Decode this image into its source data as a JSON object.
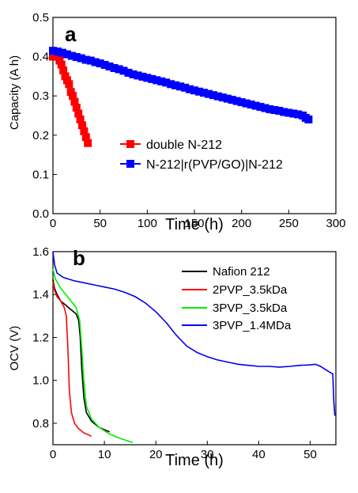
{
  "chart_data": [
    {
      "type": "scatter",
      "panel_label": "a",
      "xlabel": "Time (h)",
      "ylabel": "Capacity (A h)",
      "xlim": [
        0,
        300
      ],
      "ylim": [
        0.0,
        0.5
      ],
      "xticks": [
        "0",
        "50",
        "100",
        "150",
        "200",
        "250",
        "300"
      ],
      "yticks": [
        "0.0",
        "0.1",
        "0.2",
        "0.3",
        "0.4",
        "0.5"
      ],
      "legend_position": "center-right",
      "grid": false,
      "series": [
        {
          "name": "double N-212",
          "color": "#ff0000",
          "marker": "square",
          "x": [
            0,
            3,
            5,
            7,
            9,
            11,
            13,
            15,
            17,
            19,
            21,
            23,
            25,
            27,
            29,
            31,
            33,
            35,
            37
          ],
          "y": [
            0.4,
            0.405,
            0.4,
            0.39,
            0.38,
            0.365,
            0.35,
            0.34,
            0.33,
            0.31,
            0.3,
            0.285,
            0.27,
            0.255,
            0.24,
            0.225,
            0.21,
            0.195,
            0.18
          ]
        },
        {
          "name": "N-212|r(PVP/GO)|N-212",
          "color": "#0000ff",
          "marker": "square",
          "x": [
            0,
            5,
            10,
            15,
            20,
            25,
            30,
            35,
            40,
            45,
            50,
            55,
            60,
            65,
            70,
            75,
            80,
            85,
            90,
            95,
            100,
            105,
            110,
            115,
            120,
            125,
            130,
            135,
            140,
            145,
            150,
            155,
            160,
            165,
            170,
            175,
            180,
            185,
            190,
            195,
            200,
            205,
            210,
            215,
            220,
            225,
            230,
            235,
            240,
            245,
            250,
            255,
            260,
            265,
            268,
            271
          ],
          "y": [
            0.415,
            0.413,
            0.41,
            0.406,
            0.402,
            0.399,
            0.396,
            0.392,
            0.39,
            0.386,
            0.383,
            0.379,
            0.375,
            0.371,
            0.368,
            0.364,
            0.359,
            0.355,
            0.352,
            0.349,
            0.346,
            0.343,
            0.34,
            0.337,
            0.334,
            0.33,
            0.327,
            0.324,
            0.321,
            0.317,
            0.314,
            0.311,
            0.308,
            0.305,
            0.302,
            0.299,
            0.296,
            0.293,
            0.29,
            0.287,
            0.284,
            0.281,
            0.278,
            0.275,
            0.272,
            0.269,
            0.266,
            0.264,
            0.262,
            0.259,
            0.257,
            0.255,
            0.253,
            0.25,
            0.244,
            0.24
          ]
        }
      ]
    },
    {
      "type": "line",
      "panel_label": "b",
      "xlabel": "Time (h)",
      "ylabel": "OCV (V)",
      "xlim": [
        0,
        55
      ],
      "ylim": [
        0.7,
        1.6
      ],
      "xticks": [
        "0",
        "10",
        "20",
        "30",
        "40",
        "50"
      ],
      "yticks": [
        "0.8",
        "1.0",
        "1.2",
        "1.4",
        "1.6"
      ],
      "legend_position": "top-right",
      "grid": false,
      "series": [
        {
          "name": "Nafion 212",
          "color": "#000000",
          "x": [
            0,
            0.3,
            0.8,
            1.5,
            2.5,
            3.5,
            4.5,
            5.0,
            5.3,
            5.6,
            6.0,
            6.5,
            7.5,
            9.0,
            10.5,
            11.0
          ],
          "y": [
            1.47,
            1.43,
            1.4,
            1.37,
            1.35,
            1.33,
            1.31,
            1.28,
            1.2,
            1.05,
            0.92,
            0.85,
            0.81,
            0.78,
            0.765,
            0.76
          ]
        },
        {
          "name": "2PVP_3.5kDa",
          "color": "#ff0000",
          "x": [
            0,
            0.3,
            0.8,
            1.5,
            2.2,
            2.6,
            2.9,
            3.2,
            3.6,
            4.2,
            5.0,
            6.0,
            7.5
          ],
          "y": [
            1.46,
            1.42,
            1.39,
            1.37,
            1.34,
            1.3,
            1.15,
            0.95,
            0.85,
            0.8,
            0.775,
            0.755,
            0.74
          ]
        },
        {
          "name": "3PVP_3.5kDa",
          "color": "#00ee00",
          "x": [
            0,
            0.5,
            1.5,
            2.5,
            3.5,
            4.5,
            5.2,
            5.6,
            6.0,
            6.5,
            7.5,
            9.0,
            11.0,
            13.0,
            15.5
          ],
          "y": [
            1.52,
            1.47,
            1.43,
            1.4,
            1.37,
            1.34,
            1.28,
            1.15,
            1.0,
            0.88,
            0.82,
            0.78,
            0.75,
            0.73,
            0.71
          ]
        },
        {
          "name": "3PVP_1.4MDa",
          "color": "#0000ee",
          "x": [
            0,
            0.3,
            0.8,
            2,
            4,
            6,
            8,
            10,
            12,
            14,
            16,
            18,
            20,
            22,
            24,
            26,
            28,
            30,
            32,
            34,
            36,
            38,
            40,
            42,
            44,
            46,
            48,
            50,
            51,
            52,
            53,
            54,
            54.4,
            54.6,
            54.8
          ],
          "y": [
            1.6,
            1.54,
            1.5,
            1.48,
            1.465,
            1.455,
            1.445,
            1.435,
            1.425,
            1.41,
            1.39,
            1.36,
            1.32,
            1.27,
            1.21,
            1.16,
            1.13,
            1.11,
            1.095,
            1.085,
            1.075,
            1.07,
            1.065,
            1.065,
            1.062,
            1.065,
            1.07,
            1.072,
            1.075,
            1.065,
            1.05,
            1.035,
            1.03,
            0.9,
            0.835
          ]
        }
      ]
    }
  ]
}
